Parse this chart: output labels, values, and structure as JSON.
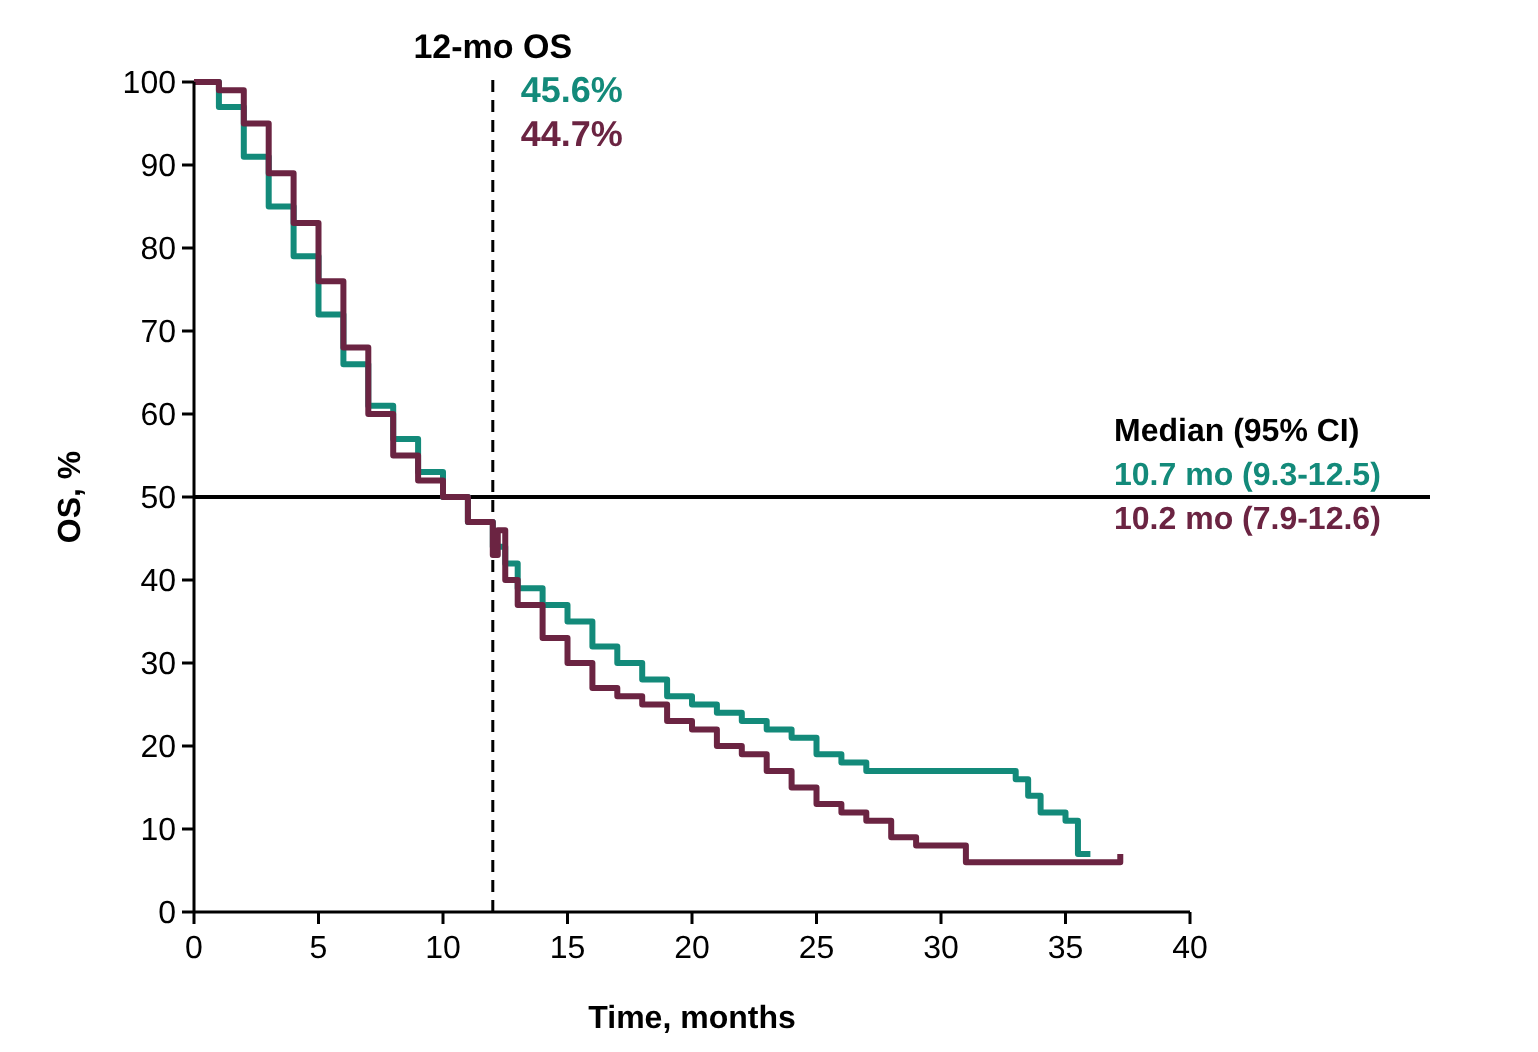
{
  "chart_data": {
    "type": "step",
    "xlabel": "Time, months",
    "ylabel": "OS, %",
    "xlim": [
      0,
      40
    ],
    "ylim": [
      0,
      100
    ],
    "xticks": [
      0,
      5,
      10,
      15,
      20,
      25,
      30,
      35,
      40
    ],
    "yticks": [
      0,
      10,
      20,
      30,
      40,
      50,
      60,
      70,
      80,
      90,
      100
    ],
    "grid": false,
    "marker": "none",
    "line_style": "solid",
    "series": [
      {
        "color": "#138a7a",
        "x": [
          0,
          1,
          2,
          3,
          4,
          5,
          6,
          7,
          8,
          9,
          10,
          11,
          12,
          12.5,
          13,
          14,
          15,
          16,
          17,
          18,
          19,
          20,
          21,
          22,
          23,
          24,
          25,
          26,
          27,
          28,
          29,
          30,
          31,
          32,
          33,
          33.5,
          34,
          35,
          35.5,
          36
        ],
        "values": [
          100,
          97,
          91,
          85,
          79,
          72,
          66,
          61,
          57,
          53,
          50,
          47,
          44,
          42,
          39,
          37,
          35,
          32,
          30,
          28,
          26,
          25,
          24,
          23,
          22,
          21,
          19,
          18,
          17,
          17,
          17,
          17,
          17,
          17,
          16,
          14,
          12,
          11,
          7,
          7
        ]
      },
      {
        "color": "#6b2442",
        "x": [
          0,
          1,
          2,
          3,
          4,
          5,
          6,
          7,
          8,
          9,
          10,
          11,
          12,
          12.2,
          12.5,
          13,
          14,
          15,
          16,
          17,
          18,
          19,
          20,
          21,
          22,
          23,
          24,
          25,
          26,
          27,
          28,
          29,
          30,
          31,
          32,
          36,
          37,
          37.2
        ],
        "values": [
          100,
          99,
          95,
          89,
          83,
          76,
          68,
          60,
          55,
          52,
          50,
          47,
          43,
          46,
          40,
          37,
          33,
          30,
          27,
          26,
          25,
          23,
          22,
          20,
          19,
          17,
          15,
          13,
          12,
          11,
          9,
          8,
          8,
          6,
          6,
          6,
          6,
          7
        ]
      }
    ],
    "ref_lines": [
      {
        "axis": "x",
        "value": 12,
        "label": "12-mo OS",
        "line_style": "dashed"
      },
      {
        "axis": "y",
        "value": 50,
        "line_style": "solid"
      }
    ],
    "annotations": [
      "45.6%",
      "44.7%",
      "Median (95% CI)",
      "10.7 mo (9.3-12.5)",
      "10.2 mo (7.9-12.6)"
    ]
  }
}
